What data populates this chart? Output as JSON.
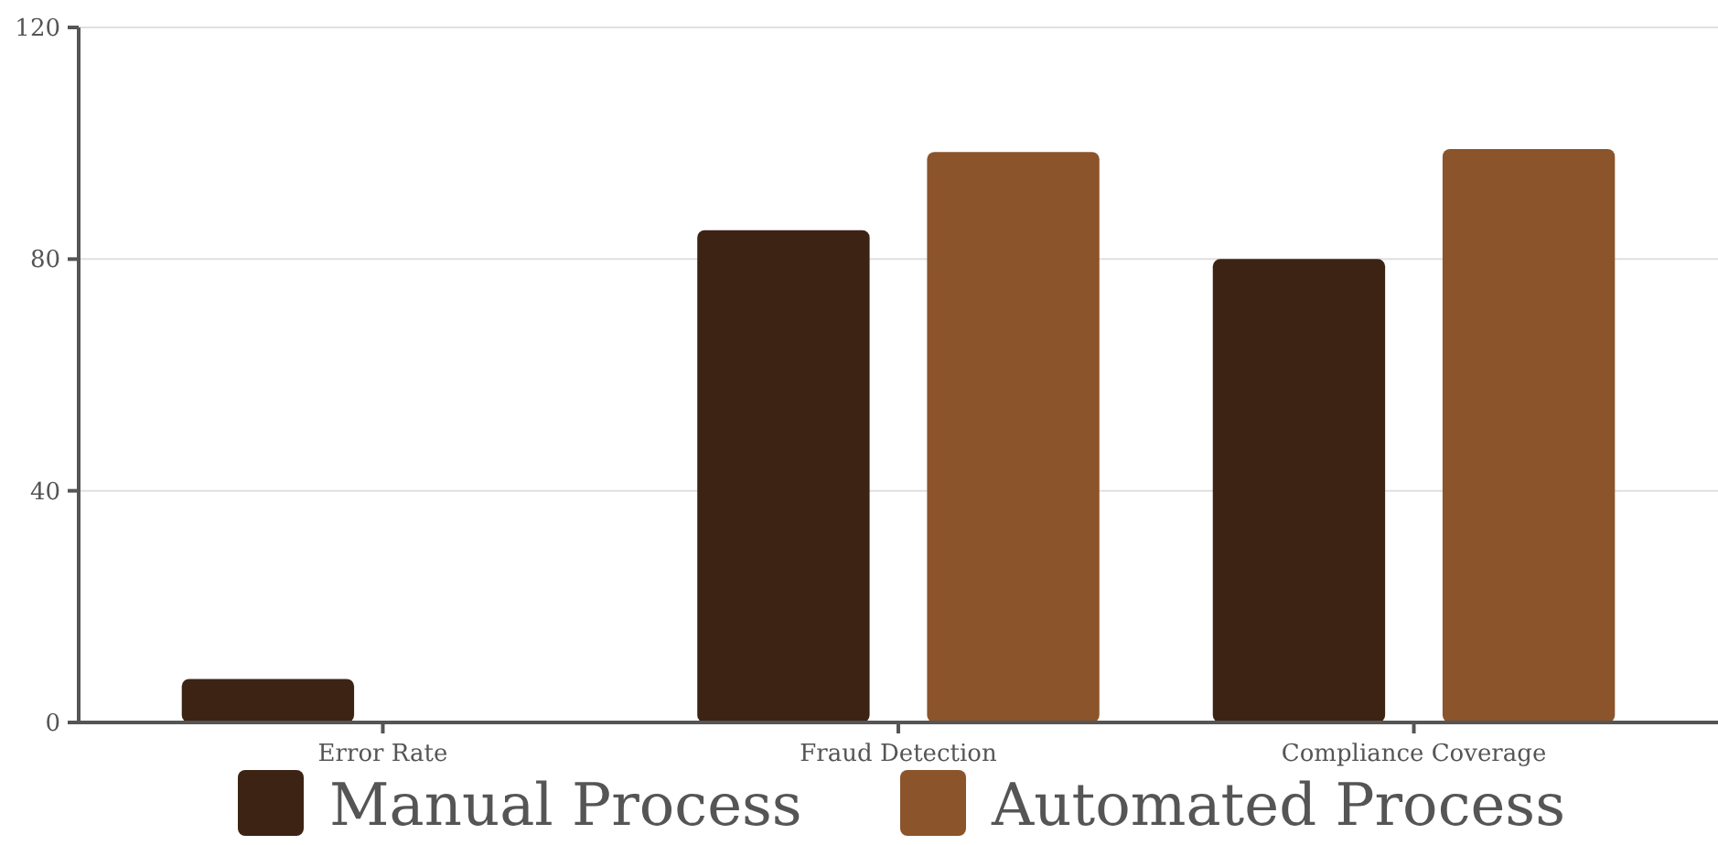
{
  "chart_data": {
    "type": "bar",
    "categories": [
      "Error Rate",
      "Fraud Detection",
      "Compliance Coverage"
    ],
    "series": [
      {
        "name": "Manual Process",
        "color": "#3d2314",
        "values": [
          7.5,
          85,
          80
        ]
      },
      {
        "name": "Automated Process",
        "color": "#8b542b",
        "values": [
          0.3,
          98.5,
          99
        ]
      }
    ],
    "ylim": [
      0,
      120
    ],
    "yticks": [
      0,
      40,
      80,
      120
    ],
    "grid": "y",
    "legend": "bottom"
  }
}
